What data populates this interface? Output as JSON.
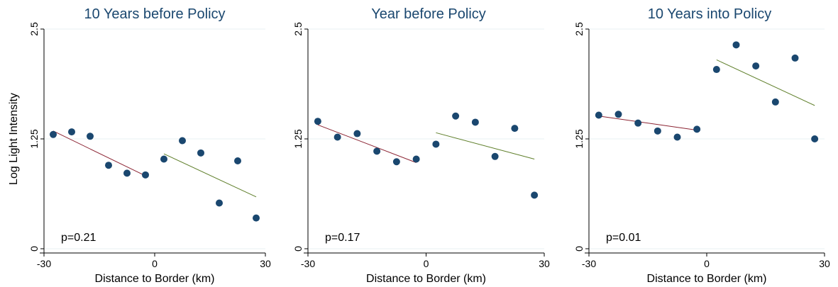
{
  "chart_data": [
    {
      "type": "scatter",
      "title": "10 Years before Policy",
      "xlabel": "Distance to Border (km)",
      "ylabel": "Log Light Intensity",
      "xlim": [
        -30,
        30
      ],
      "ylim": [
        0,
        2.5
      ],
      "xticks": [
        "-30",
        "0",
        "30"
      ],
      "yticks": [
        "0",
        "1.25",
        "2.5"
      ],
      "grid": true,
      "annotation": "p=0.21",
      "points": [
        {
          "x": -27.5,
          "y": 1.3
        },
        {
          "x": -22.5,
          "y": 1.33
        },
        {
          "x": -17.5,
          "y": 1.28
        },
        {
          "x": -12.5,
          "y": 0.95
        },
        {
          "x": -7.5,
          "y": 0.86
        },
        {
          "x": -2.5,
          "y": 0.84
        },
        {
          "x": 2.5,
          "y": 1.02
        },
        {
          "x": 7.5,
          "y": 1.23
        },
        {
          "x": 12.5,
          "y": 1.09
        },
        {
          "x": 17.5,
          "y": 0.52
        },
        {
          "x": 22.5,
          "y": 1.0
        },
        {
          "x": 27.5,
          "y": 0.35
        }
      ],
      "fit_lines": [
        {
          "side": "left",
          "x": [
            -27.5,
            -2.5
          ],
          "y": [
            1.34,
            0.83
          ],
          "color": "#8b2332"
        },
        {
          "side": "right",
          "x": [
            2.5,
            27.5
          ],
          "y": [
            1.08,
            0.59
          ],
          "color": "#5f7f2a"
        }
      ]
    },
    {
      "type": "scatter",
      "title": "Year before Policy",
      "xlabel": "Distance to Border (km)",
      "ylabel": "",
      "xlim": [
        -30,
        30
      ],
      "ylim": [
        0,
        2.5
      ],
      "xticks": [
        "-30",
        "0",
        "30"
      ],
      "yticks": [
        "0",
        "1.25",
        "2.5"
      ],
      "grid": true,
      "annotation": "p=0.17",
      "points": [
        {
          "x": -27.5,
          "y": 1.45
        },
        {
          "x": -22.5,
          "y": 1.27
        },
        {
          "x": -17.5,
          "y": 1.31
        },
        {
          "x": -12.5,
          "y": 1.11
        },
        {
          "x": -7.5,
          "y": 0.99
        },
        {
          "x": -2.5,
          "y": 1.02
        },
        {
          "x": 2.5,
          "y": 1.19
        },
        {
          "x": 7.5,
          "y": 1.51
        },
        {
          "x": 12.5,
          "y": 1.44
        },
        {
          "x": 17.5,
          "y": 1.05
        },
        {
          "x": 22.5,
          "y": 1.37
        },
        {
          "x": 27.5,
          "y": 0.61
        }
      ],
      "fit_lines": [
        {
          "side": "left",
          "x": [
            -27.5,
            -2.5
          ],
          "y": [
            1.41,
            0.98
          ],
          "color": "#8b2332"
        },
        {
          "side": "right",
          "x": [
            2.5,
            27.5
          ],
          "y": [
            1.32,
            1.02
          ],
          "color": "#5f7f2a"
        }
      ]
    },
    {
      "type": "scatter",
      "title": "10 Years into Policy",
      "xlabel": "Distance to Border (km)",
      "ylabel": "",
      "xlim": [
        -30,
        30
      ],
      "ylim": [
        0,
        2.5
      ],
      "xticks": [
        "-30",
        "0",
        "30"
      ],
      "yticks": [
        "0",
        "1.25",
        "2.5"
      ],
      "grid": true,
      "annotation": "p=0.01",
      "points": [
        {
          "x": -27.5,
          "y": 1.52
        },
        {
          "x": -22.5,
          "y": 1.53
        },
        {
          "x": -17.5,
          "y": 1.43
        },
        {
          "x": -12.5,
          "y": 1.34
        },
        {
          "x": -7.5,
          "y": 1.27
        },
        {
          "x": -2.5,
          "y": 1.36
        },
        {
          "x": 2.5,
          "y": 2.04
        },
        {
          "x": 7.5,
          "y": 2.32
        },
        {
          "x": 12.5,
          "y": 2.08
        },
        {
          "x": 17.5,
          "y": 1.67
        },
        {
          "x": 22.5,
          "y": 2.17
        },
        {
          "x": 27.5,
          "y": 1.25
        }
      ],
      "fit_lines": [
        {
          "side": "left",
          "x": [
            -27.5,
            -2.5
          ],
          "y": [
            1.51,
            1.35
          ],
          "color": "#8b2332"
        },
        {
          "side": "right",
          "x": [
            2.5,
            27.5
          ],
          "y": [
            2.15,
            1.63
          ],
          "color": "#5f7f2a"
        }
      ]
    }
  ],
  "colors": {
    "title": "#1a476f",
    "marker": "#1a476f",
    "grid": "#eaf2f3",
    "axis": "#000000"
  }
}
